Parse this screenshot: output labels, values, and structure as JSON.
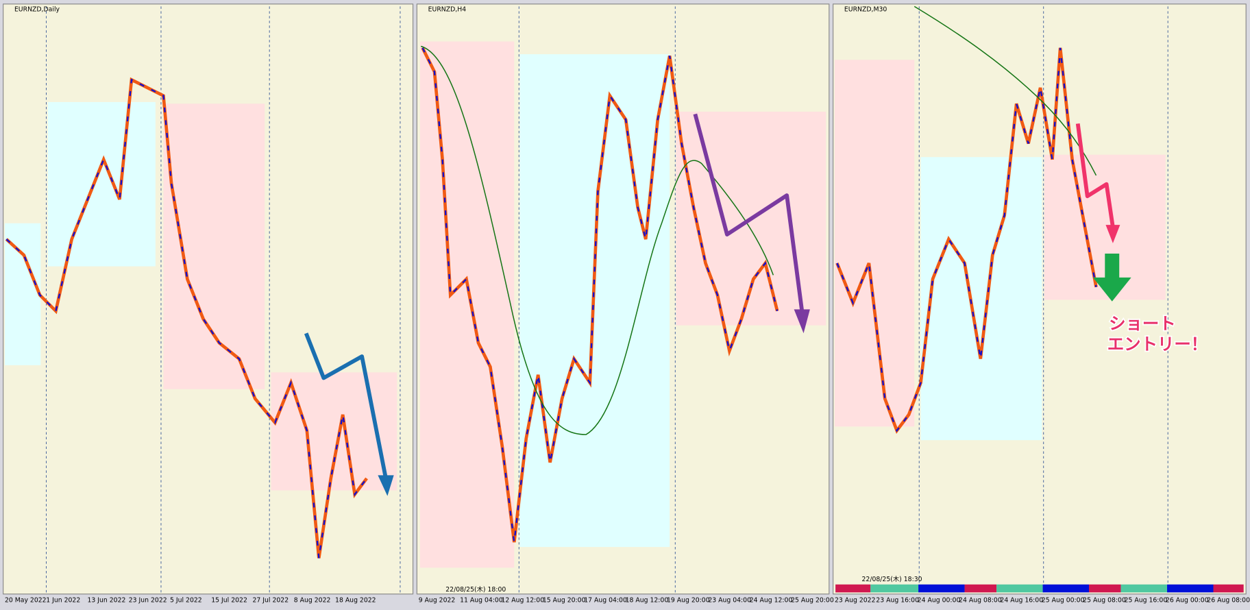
{
  "panels": [
    {
      "title": "EURNZD,Daily",
      "x_labels": [
        "20 May 2022",
        "1 Jun 2022",
        "13 Jun 2022",
        "23 Jun 2022",
        "5 Jul 2022",
        "15 Jul 2022",
        "27 Jul 2022",
        "8 Aug 2022",
        "18 Aug 2022"
      ]
    },
    {
      "title": "EURNZD,H4",
      "timestamp": "22/08/25(木) 18:00",
      "x_labels": [
        "9 Aug 2022",
        "11 Aug 04:00",
        "12 Aug 12:00",
        "15 Aug 20:00",
        "17 Aug 04:00",
        "18 Aug 12:00",
        "19 Aug 20:00",
        "23 Aug 04:00",
        "24 Aug 12:00",
        "25 Aug 20:00"
      ]
    },
    {
      "title": "EURNZD,M30",
      "timestamp": "22/08/25(木) 18:30",
      "x_labels": [
        "23 Aug 2022",
        "23 Aug 16:00",
        "24 Aug 00:00",
        "24 Aug 08:00",
        "24 Aug 16:00",
        "25 Aug 00:00",
        "25 Aug 08:00",
        "25 Aug 16:00",
        "26 Aug 00:00",
        "26 Aug 08:00"
      ],
      "annotation": [
        "ショート",
        "エントリー！"
      ]
    }
  ]
}
